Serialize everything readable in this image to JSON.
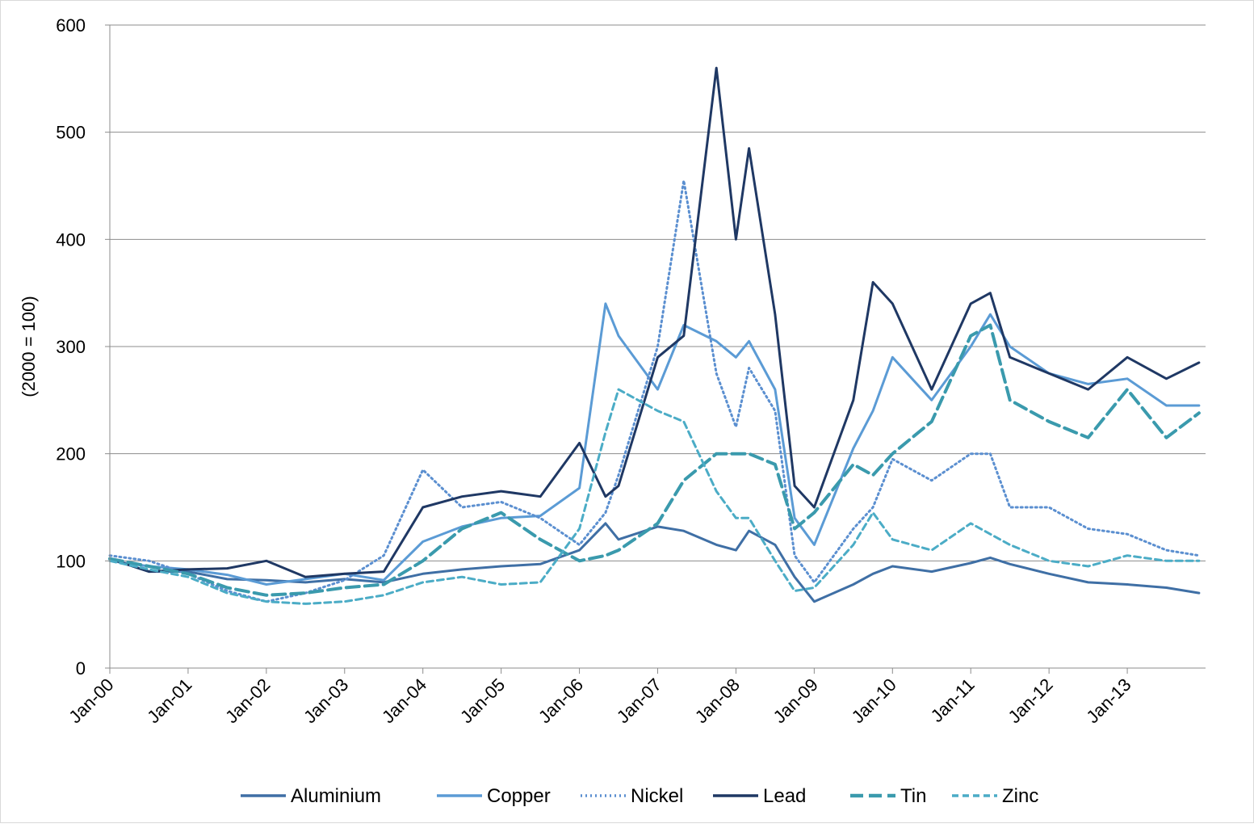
{
  "chart_data": {
    "type": "line",
    "title": "",
    "xlabel": "",
    "ylabel": "(2000 = 100)",
    "ylim": [
      0,
      600
    ],
    "yticks": [
      0,
      100,
      200,
      300,
      400,
      500,
      600
    ],
    "xlim": [
      "Jan-00",
      "Dec-13"
    ],
    "x_ticks": [
      "Jan-00",
      "Jan-01",
      "Jan-02",
      "Jan-03",
      "Jan-04",
      "Jan-05",
      "Jan-06",
      "Jan-07",
      "Jan-08",
      "Jan-09",
      "Jan-10",
      "Jan-11",
      "Jan-12",
      "Jan-13"
    ],
    "grid": "horizontal",
    "legend_position": "bottom",
    "x": [
      "Jan-00",
      "Jul-00",
      "Jan-01",
      "Jul-01",
      "Jan-02",
      "Jul-02",
      "Jan-03",
      "Jul-03",
      "Jan-04",
      "Jul-04",
      "Jan-05",
      "Jul-05",
      "Jan-06",
      "May-06",
      "Jul-06",
      "Jan-07",
      "May-07",
      "Oct-07",
      "Jan-08",
      "Mar-08",
      "Jul-08",
      "Oct-08",
      "Jan-09",
      "Jul-09",
      "Oct-09",
      "Jan-10",
      "Jul-10",
      "Jan-11",
      "Apr-11",
      "Jul-11",
      "Jan-12",
      "Jul-12",
      "Jan-13",
      "Jul-13",
      "Dec-13"
    ],
    "series": [
      {
        "name": "Aluminium",
        "color": "#3f6fa5",
        "dash": "solid",
        "values": [
          102,
          90,
          90,
          83,
          82,
          80,
          83,
          80,
          88,
          92,
          95,
          97,
          110,
          135,
          120,
          132,
          128,
          115,
          110,
          128,
          115,
          85,
          62,
          78,
          88,
          95,
          90,
          98,
          103,
          97,
          88,
          80,
          78,
          75,
          70
        ]
      },
      {
        "name": "Copper",
        "color": "#5b9bd5",
        "dash": "solid",
        "values": [
          100,
          95,
          92,
          87,
          78,
          83,
          88,
          82,
          118,
          132,
          140,
          142,
          168,
          340,
          310,
          260,
          320,
          305,
          290,
          305,
          260,
          140,
          115,
          205,
          240,
          290,
          250,
          300,
          330,
          300,
          275,
          265,
          270,
          245,
          245
        ]
      },
      {
        "name": "Nickel",
        "color": "#5b8fd0",
        "dash": "dot",
        "values": [
          105,
          100,
          88,
          72,
          62,
          70,
          82,
          105,
          185,
          150,
          155,
          140,
          115,
          145,
          180,
          300,
          455,
          275,
          225,
          280,
          240,
          105,
          80,
          130,
          150,
          195,
          175,
          200,
          200,
          150,
          150,
          130,
          125,
          110,
          105
        ]
      },
      {
        "name": "Lead",
        "color": "#1f3864",
        "dash": "solid",
        "values": [
          102,
          90,
          92,
          93,
          100,
          85,
          88,
          90,
          150,
          160,
          165,
          160,
          210,
          160,
          170,
          290,
          310,
          560,
          400,
          485,
          330,
          170,
          150,
          250,
          360,
          340,
          260,
          340,
          350,
          290,
          275,
          260,
          290,
          270,
          285
        ]
      },
      {
        "name": "Tin",
        "color": "#3a9aad",
        "dash": "longdash",
        "values": [
          102,
          95,
          88,
          75,
          68,
          70,
          75,
          78,
          100,
          130,
          145,
          120,
          100,
          105,
          110,
          135,
          175,
          200,
          200,
          200,
          190,
          130,
          145,
          190,
          180,
          200,
          230,
          310,
          320,
          250,
          230,
          215,
          260,
          215,
          238
        ]
      },
      {
        "name": "Zinc",
        "color": "#4bacc6",
        "dash": "dash",
        "values": [
          100,
          92,
          85,
          70,
          62,
          60,
          62,
          68,
          80,
          85,
          78,
          80,
          130,
          220,
          260,
          240,
          230,
          165,
          140,
          140,
          100,
          72,
          75,
          115,
          145,
          120,
          110,
          135,
          125,
          115,
          100,
          95,
          105,
          100,
          100
        ]
      }
    ]
  }
}
